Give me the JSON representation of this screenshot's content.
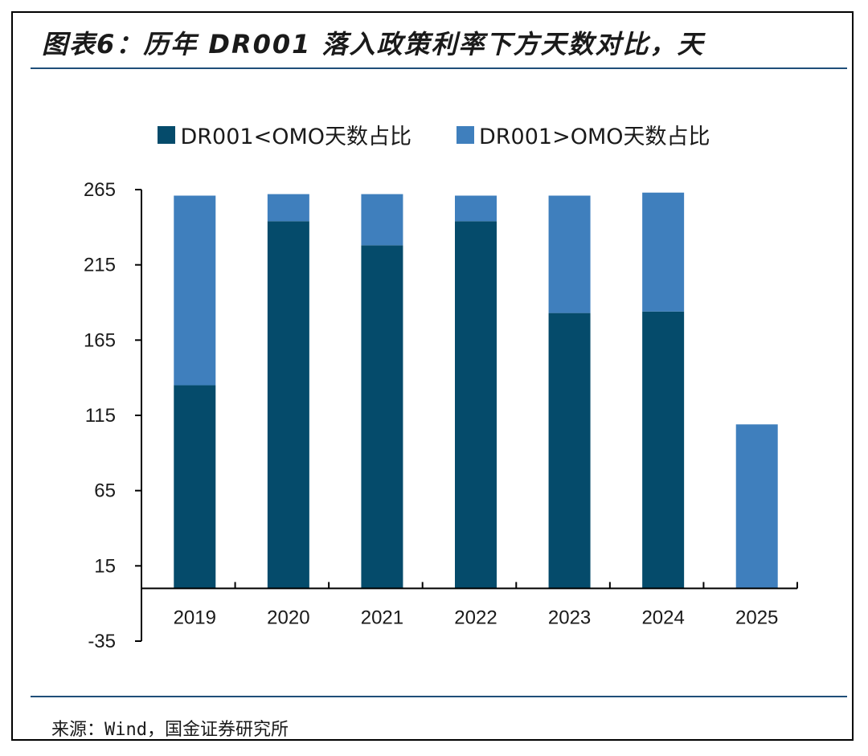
{
  "title": "图表6：历年 DR001 落入政策利率下方天数对比，天",
  "source": "来源：Wind，国金证券研究所",
  "colors": {
    "below": "#054b6b",
    "above": "#3f7fbd",
    "rule": "#1f4e79"
  },
  "chart_data": {
    "type": "bar",
    "stacked": true,
    "categories": [
      "2019",
      "2020",
      "2021",
      "2022",
      "2023",
      "2024",
      "2025"
    ],
    "series": [
      {
        "name": "DR001<OMO天数占比",
        "values": [
          135,
          244,
          228,
          244,
          183,
          184,
          0
        ]
      },
      {
        "name": "DR001>OMO天数占比",
        "values": [
          126,
          18,
          34,
          17,
          78,
          79,
          109
        ]
      }
    ],
    "yticks": [
      "265",
      "215",
      "165",
      "115",
      "65",
      "15",
      "-35"
    ],
    "ylim": [
      -35,
      265
    ],
    "xlabel": "",
    "ylabel": "",
    "legend_position": "top",
    "grid": false
  }
}
